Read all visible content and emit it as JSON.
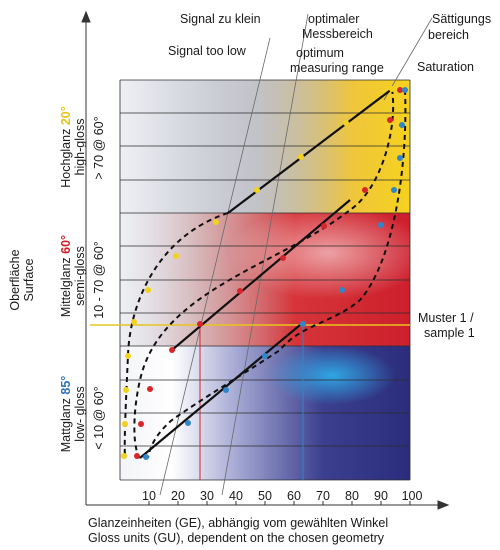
{
  "header": {
    "signal_too_small_de": "Signal zu klein",
    "signal_too_low_en": "Signal too low",
    "optimal_de_line1": "optimaler",
    "optimal_de_line2": "Messbereich",
    "optimal_en_line1": "optimum",
    "optimal_en_line2": "measuring range",
    "saturation_de_line1": "Sättigungs",
    "saturation_de_line2": "bereich",
    "saturation_en": "Saturation"
  },
  "y_axis": {
    "title_de": "Oberfläche",
    "title_en": "Surface"
  },
  "bands": [
    {
      "de": "Hochglanz",
      "angle": "20°",
      "en": "high-gloss",
      "range": "> 70 @ 60°",
      "angle_color": "#e8c21a"
    },
    {
      "de": "Mittelglanz",
      "angle": "60°",
      "en": "semi-gloss",
      "range": "10 - 70 @ 60°",
      "angle_color": "#d1202a"
    },
    {
      "de": "Mattglanz",
      "angle": "85°",
      "en": "low- gloss",
      "range": "< 10 @ 60°",
      "angle_color": "#2f74b8"
    }
  ],
  "sample": {
    "line1": "Muster 1 /",
    "line2": "sample 1"
  },
  "x_axis": {
    "ticks": [
      "10",
      "20",
      "30",
      "40",
      "50",
      "60",
      "70",
      "80",
      "90",
      "100"
    ],
    "title_de": "Glanzeinheiten (GE), abhängig vom gewählten Winkel",
    "title_en": "Gloss units (GU), dependent on the chosen geometry"
  },
  "colors": {
    "yellow_dot": "#f2d21c",
    "red_dot": "#d8242b",
    "blue_dot": "#2f86c8",
    "sample_line": "#e6c51f"
  }
}
